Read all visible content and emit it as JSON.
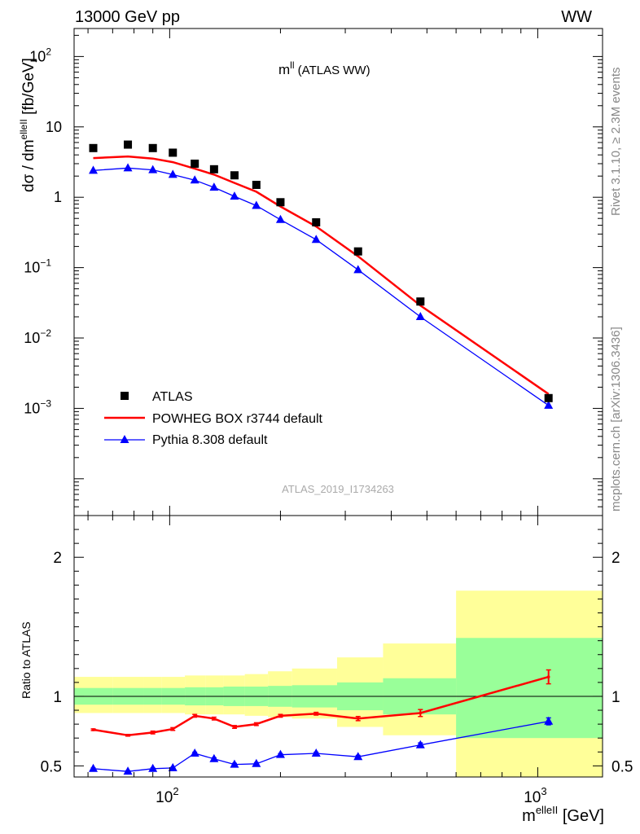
{
  "header": {
    "left": "13000 GeV pp",
    "right": "WW"
  },
  "side_texts": {
    "rivet": "Rivet 3.1.10, ≥ 2.3M events",
    "source": "mcplots.cern.ch [arXiv:1306.3436]"
  },
  "watermark": "ATLAS_2019_I1734263",
  "chart_data": [
    {
      "type": "line",
      "title_main": "m",
      "title_sup": "ll",
      "title_rest": " (ATLAS WW)",
      "ylabel_main": "dσ / dm",
      "ylabel_sup": "elleII",
      "ylabel_unit": " [fb/GeV]",
      "xscale": "log",
      "yscale": "log",
      "xlim": [
        55,
        1500
      ],
      "ylim": [
        3e-05,
        250
      ],
      "x": [
        62,
        77,
        90,
        102,
        117,
        132,
        150,
        172,
        200,
        250,
        325,
        480,
        1070
      ],
      "yticks": [
        {
          "value": 100,
          "base": "10",
          "exp": "2"
        },
        {
          "value": 10,
          "base": "10",
          "exp": ""
        },
        {
          "value": 1,
          "base": "1",
          "exp": ""
        },
        {
          "value": 0.1,
          "base": "10",
          "exp": "−1"
        },
        {
          "value": 0.01,
          "base": "10",
          "exp": "−2"
        },
        {
          "value": 0.001,
          "base": "10",
          "exp": "−3"
        }
      ],
      "legend_placement": "bottom-left",
      "series": [
        {
          "name": "ATLAS",
          "style": "markers",
          "marker": "square",
          "color": "#000000",
          "values": [
            5.0,
            5.6,
            5.0,
            4.3,
            3.0,
            2.5,
            2.05,
            1.5,
            0.85,
            0.44,
            0.17,
            0.033,
            0.0014
          ]
        },
        {
          "name": "POWHEG BOX r3744 default",
          "style": "line",
          "color": "#ff0000",
          "values": [
            3.6,
            3.8,
            3.55,
            3.15,
            2.55,
            2.1,
            1.6,
            1.2,
            0.74,
            0.385,
            0.145,
            0.029,
            0.0016
          ]
        },
        {
          "name": "Pythia 8.308 default",
          "style": "line+triangle",
          "color": "#0000ff",
          "values": [
            2.4,
            2.6,
            2.45,
            2.1,
            1.75,
            1.38,
            1.03,
            0.76,
            0.48,
            0.25,
            0.093,
            0.02,
            0.0011
          ]
        }
      ]
    },
    {
      "type": "line",
      "ylabel": "Ratio to ATLAS",
      "xlabel_main": "m",
      "xlabel_sup": "elleII",
      "xlabel_unit": " [GeV]",
      "xscale": "log",
      "xlim": [
        55,
        1500
      ],
      "ylim": [
        0.42,
        2.3
      ],
      "yticks": [
        0.5,
        1,
        2
      ],
      "yticklabels": [
        "0.5",
        "1",
        "2"
      ],
      "xticks": [
        100,
        1000
      ],
      "xticklabels": [
        {
          "base": "10",
          "exp": "2"
        },
        {
          "base": "10",
          "exp": "3"
        }
      ],
      "bins": [
        55,
        70,
        85,
        95,
        110,
        125,
        140,
        160,
        185,
        215,
        285,
        380,
        600,
        1500
      ],
      "uncertainty_bands": [
        {
          "name": "inner",
          "color": "#99ff99",
          "lo": [
            0.94,
            0.94,
            0.94,
            0.94,
            0.935,
            0.935,
            0.93,
            0.93,
            0.925,
            0.92,
            0.9,
            0.87,
            0.7
          ],
          "hi": [
            1.06,
            1.06,
            1.06,
            1.06,
            1.065,
            1.065,
            1.07,
            1.07,
            1.075,
            1.08,
            1.1,
            1.13,
            1.42
          ]
        },
        {
          "name": "outer",
          "color": "#ffff99",
          "lo": [
            0.88,
            0.88,
            0.88,
            0.88,
            0.87,
            0.87,
            0.87,
            0.86,
            0.85,
            0.84,
            0.78,
            0.72,
            0.42
          ],
          "hi": [
            1.14,
            1.14,
            1.14,
            1.14,
            1.15,
            1.15,
            1.15,
            1.16,
            1.18,
            1.2,
            1.28,
            1.38,
            1.76
          ]
        }
      ],
      "x": [
        62,
        77,
        90,
        102,
        117,
        132,
        150,
        172,
        200,
        250,
        325,
        480,
        1070
      ],
      "series": [
        {
          "name": "POWHEG BOX r3744 default",
          "color": "#ff0000",
          "values": [
            0.76,
            0.72,
            0.74,
            0.765,
            0.86,
            0.84,
            0.78,
            0.8,
            0.86,
            0.875,
            0.84,
            0.88,
            1.14
          ],
          "errors": [
            0.006,
            0.006,
            0.01,
            0.01,
            0.01,
            0.01,
            0.01,
            0.01,
            0.01,
            0.01,
            0.015,
            0.025,
            0.05
          ]
        },
        {
          "name": "Pythia 8.308 default",
          "color": "#0000ff",
          "values": [
            0.48,
            0.46,
            0.48,
            0.485,
            0.59,
            0.55,
            0.51,
            0.515,
            0.58,
            0.59,
            0.565,
            0.65,
            0.82
          ],
          "errors": [
            0.005,
            0.005,
            0.005,
            0.005,
            0.008,
            0.008,
            0.008,
            0.008,
            0.008,
            0.008,
            0.01,
            0.015,
            0.025
          ]
        }
      ]
    }
  ]
}
